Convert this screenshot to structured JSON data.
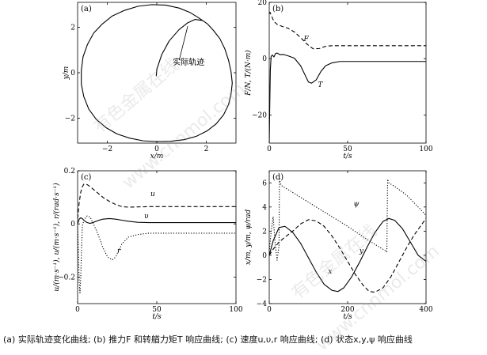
{
  "caption": "(a) 实际轨迹变化曲线; (b) 推力F 和转艏力矩T 响应曲线; (c) 速度u,υ,r 响应曲线; (d) 状态x,y,ψ 响应曲线",
  "watermarks": [
    "有色金属在线",
    "www.cnnmol.com",
    "有色金属在线",
    "www.cnnmol.com"
  ],
  "chart_data": [
    {
      "id": "a",
      "type": "line",
      "panel_label": "(a)",
      "xlabel": "x/m",
      "ylabel": "y/m",
      "xlim": [
        -3.2,
        3.2
      ],
      "ylim": [
        -3.1,
        3.1
      ],
      "xticks": [
        -2,
        0,
        2
      ],
      "xtick_labels": [
        "−2",
        "0",
        "2"
      ],
      "yticks": [
        -2,
        0,
        2
      ],
      "ytick_labels": [
        "−2",
        "0",
        "2"
      ],
      "annotation": {
        "text": "实际轨迹",
        "x": 0.65,
        "y": 0.35
      },
      "series": [
        {
          "style": "solid",
          "x": [
            -0.02,
            0.0,
            0.2,
            0.5,
            0.9,
            1.25,
            1.55,
            1.85,
            2.05,
            2.3,
            2.55,
            2.75,
            2.9,
            3.0,
            3.05,
            3.0,
            2.9,
            2.7,
            2.4,
            2.05,
            1.6,
            1.1,
            0.55,
            0.0,
            -0.55,
            -1.1,
            -1.6,
            -2.05,
            -2.45,
            -2.75,
            -2.95,
            -3.05,
            -3.05,
            -2.98,
            -2.8,
            -2.55,
            -2.2,
            -1.8,
            -1.3,
            -0.75,
            -0.2,
            0.35,
            0.9,
            1.35,
            1.65,
            1.85
          ],
          "y": [
            -0.15,
            0.15,
            0.8,
            1.4,
            1.9,
            2.2,
            2.35,
            2.3,
            2.15,
            1.85,
            1.5,
            1.05,
            0.55,
            0.05,
            -0.45,
            -0.95,
            -1.4,
            -1.85,
            -2.25,
            -2.55,
            -2.8,
            -2.95,
            -3.02,
            -3.03,
            -3.0,
            -2.88,
            -2.7,
            -2.42,
            -2.05,
            -1.6,
            -1.05,
            -0.5,
            0.1,
            0.7,
            1.25,
            1.75,
            2.15,
            2.5,
            2.75,
            2.93,
            3.0,
            2.98,
            2.85,
            2.65,
            2.45,
            2.3
          ]
        }
      ]
    },
    {
      "id": "b",
      "type": "line",
      "panel_label": "(b)",
      "xlabel": "t/s",
      "ylabel": "F/N, T/(N·m)",
      "xlim": [
        0,
        100
      ],
      "ylim": [
        -30,
        20
      ],
      "xticks": [
        0,
        50,
        100
      ],
      "xtick_labels": [
        "0",
        "50",
        "100"
      ],
      "yticks": [
        -20,
        0,
        20
      ],
      "ytick_labels": [
        "−20",
        "0",
        "20"
      ],
      "series": [
        {
          "name": "F",
          "style": "dashed",
          "x": [
            0,
            0.5,
            1,
            2,
            3,
            5,
            8,
            12,
            16,
            20,
            24,
            28,
            32,
            36,
            40,
            50,
            60,
            70,
            80,
            90,
            100
          ],
          "y": [
            16,
            16.5,
            15.8,
            14.5,
            13.2,
            12.2,
            11.5,
            10.8,
            9.5,
            7.5,
            5.2,
            3.5,
            3.6,
            4.4,
            4.6,
            4.6,
            4.6,
            4.6,
            4.6,
            4.6,
            4.6
          ]
        },
        {
          "name": "T",
          "style": "solid",
          "x": [
            0,
            0.3,
            0.7,
            1.2,
            2,
            3,
            4,
            5,
            7,
            9,
            12,
            16,
            20,
            23,
            25,
            27,
            30,
            33,
            36,
            40,
            45,
            50,
            60,
            70,
            80,
            90,
            100
          ],
          "y": [
            -30,
            -18,
            -4,
            0.8,
            1.3,
            0.6,
            1.8,
            2.0,
            1.4,
            1.5,
            1.0,
            0.2,
            -2.5,
            -6.0,
            -8.3,
            -8.7,
            -7.5,
            -4.5,
            -2.5,
            -1.5,
            -1.0,
            -1.0,
            -1.0,
            -1.0,
            -1.0,
            -1.0,
            -1.0
          ]
        }
      ],
      "annotations": [
        {
          "text": "F",
          "x": 22,
          "y": 6.2
        },
        {
          "text": "T",
          "x": 31,
          "y": -10
        }
      ]
    },
    {
      "id": "c",
      "type": "line",
      "panel_label": "(c)",
      "xlabel": "t/s",
      "ylabel": "u/(m·s⁻¹), υ/(m·s⁻¹), r/(rad·s⁻¹)",
      "xlim": [
        0,
        100
      ],
      "ylim": [
        -0.3,
        0.2
      ],
      "xticks": [
        0,
        50,
        100
      ],
      "xtick_labels": [
        "0",
        "50",
        "100"
      ],
      "yticks": [
        -0.2,
        0,
        0.2
      ],
      "ytick_labels": [
        "−0.2",
        "0",
        "0.2"
      ],
      "series": [
        {
          "name": "u",
          "style": "dashed",
          "x": [
            0,
            1,
            2,
            3,
            4,
            6,
            8,
            10,
            13,
            16,
            20,
            24,
            28,
            32,
            38,
            45,
            50,
            60,
            70,
            80,
            90,
            100
          ],
          "y": [
            0.02,
            0.08,
            0.12,
            0.14,
            0.15,
            0.148,
            0.14,
            0.13,
            0.115,
            0.1,
            0.085,
            0.073,
            0.065,
            0.063,
            0.064,
            0.065,
            0.065,
            0.065,
            0.065,
            0.065,
            0.065,
            0.065
          ]
        },
        {
          "name": "υ",
          "style": "solid",
          "x": [
            0,
            1,
            2,
            3,
            4,
            6,
            8,
            10,
            13,
            16,
            20,
            24,
            28,
            32,
            38,
            45,
            50,
            60,
            70,
            80,
            90,
            100
          ],
          "y": [
            0.0,
            0.018,
            0.023,
            0.02,
            0.013,
            0.005,
            0.002,
            0.006,
            0.013,
            0.018,
            0.02,
            0.018,
            0.014,
            0.01,
            0.006,
            0.005,
            0.005,
            0.005,
            0.005,
            0.005,
            0.005,
            0.005
          ]
        },
        {
          "name": "r",
          "style": "dotted",
          "x": [
            0,
            0.5,
            1,
            1.5,
            2,
            2.5,
            3,
            4,
            6,
            8,
            10,
            13,
            16,
            19,
            22,
            24,
            26,
            28,
            32,
            38,
            45,
            60,
            80,
            100
          ],
          "y": [
            0.0,
            -0.1,
            -0.22,
            -0.26,
            -0.2,
            -0.09,
            -0.01,
            0.015,
            0.03,
            0.025,
            0.0,
            -0.04,
            -0.09,
            -0.125,
            -0.135,
            -0.125,
            -0.1,
            -0.075,
            -0.05,
            -0.04,
            -0.035,
            -0.035,
            -0.035,
            -0.035
          ]
        }
      ],
      "annotations": [
        {
          "text": "u",
          "x": 46,
          "y": 0.105
        },
        {
          "text": "υ",
          "x": 42,
          "y": 0.022
        },
        {
          "text": "r",
          "x": 25,
          "y": -0.11
        }
      ]
    },
    {
      "id": "d",
      "type": "line",
      "panel_label": "(d)",
      "xlabel": "t/s",
      "ylabel": "x/m, y/m, ψ/rad",
      "xlim": [
        0,
        400
      ],
      "ylim": [
        -4,
        7
      ],
      "xticks": [
        0,
        200,
        400
      ],
      "xtick_labels": [
        "0",
        "200",
        "400"
      ],
      "yticks": [
        -4,
        -2,
        0,
        2,
        4,
        6
      ],
      "ytick_labels": [
        "−4",
        "−2",
        "0",
        "2",
        "4",
        "6"
      ],
      "series": [
        {
          "name": "x",
          "style": "solid",
          "x": [
            0,
            10,
            25,
            40,
            60,
            80,
            100,
            120,
            140,
            160,
            175,
            190,
            210,
            230,
            250,
            270,
            290,
            305,
            320,
            340,
            360,
            380,
            400
          ],
          "y": [
            0.0,
            1.2,
            2.3,
            2.4,
            1.9,
            1.0,
            -0.2,
            -1.4,
            -2.4,
            -2.9,
            -3.0,
            -2.7,
            -1.8,
            -0.6,
            0.7,
            1.9,
            2.8,
            3.05,
            2.9,
            2.2,
            1.1,
            0.0,
            -0.5
          ]
        },
        {
          "name": "y",
          "style": "dashed",
          "x": [
            0,
            10,
            25,
            40,
            60,
            80,
            100,
            120,
            140,
            160,
            180,
            200,
            220,
            240,
            255,
            270,
            290,
            310,
            330,
            350,
            370,
            390,
            400
          ],
          "y": [
            0.0,
            0.5,
            1.1,
            1.5,
            2.0,
            2.6,
            2.95,
            2.85,
            2.4,
            1.6,
            0.6,
            -0.5,
            -1.6,
            -2.5,
            -3.0,
            -3.05,
            -2.7,
            -1.8,
            -0.6,
            0.6,
            1.7,
            2.6,
            3.05
          ]
        },
        {
          "name": "ψ",
          "style": "dotted",
          "x": [
            0,
            5,
            10,
            15,
            20,
            25,
            26,
            30,
            50,
            100,
            150,
            200,
            250,
            300,
            302,
            305,
            320,
            350,
            380,
            400
          ],
          "y": [
            0.3,
            2.0,
            3.2,
            1.0,
            -0.4,
            0.8,
            6.3,
            5.8,
            5.4,
            4.4,
            3.4,
            2.4,
            1.3,
            0.3,
            6.3,
            6.0,
            5.7,
            5.0,
            4.0,
            3.3
          ]
        }
      ],
      "annotations": [
        {
          "text": "ψ",
          "x": 215,
          "y": 4.1
        },
        {
          "text": "y",
          "x": 230,
          "y": 0.2
        },
        {
          "text": "x",
          "x": 150,
          "y": -1.5
        }
      ]
    }
  ]
}
